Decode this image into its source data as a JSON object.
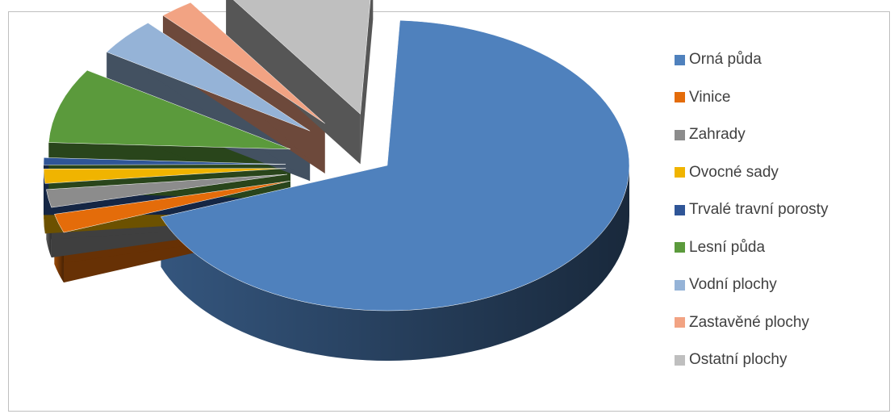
{
  "chart_data": {
    "type": "pie",
    "style": "3d-exploded",
    "title": "",
    "categories": [
      "Orná půda",
      "Vinice",
      "Zahrady",
      "Ovocné sady",
      "Trvalé travní porosty",
      "Lesní půda",
      "Vodní plochy",
      "Zastavěné plochy",
      "Ostatní plochy"
    ],
    "values": [
      68.4,
      2.1,
      2.0,
      1.6,
      0.8,
      8.4,
      4.2,
      2.3,
      10.2
    ],
    "unit": "%",
    "colors": [
      "#4f81bd",
      "#e46c0a",
      "#8c8c8c",
      "#f0b400",
      "#2f5597",
      "#5b9a3c",
      "#95b3d7",
      "#f2a383",
      "#bfbfbf"
    ],
    "legend": "right",
    "start_angle_deg": -87,
    "exploded": [
      "Vinice",
      "Zahrady",
      "Ovocné sady",
      "Trvalé travní porosty",
      "Lesní půda",
      "Vodní plochy",
      "Zastavěné plochy",
      "Ostatní plochy"
    ]
  }
}
